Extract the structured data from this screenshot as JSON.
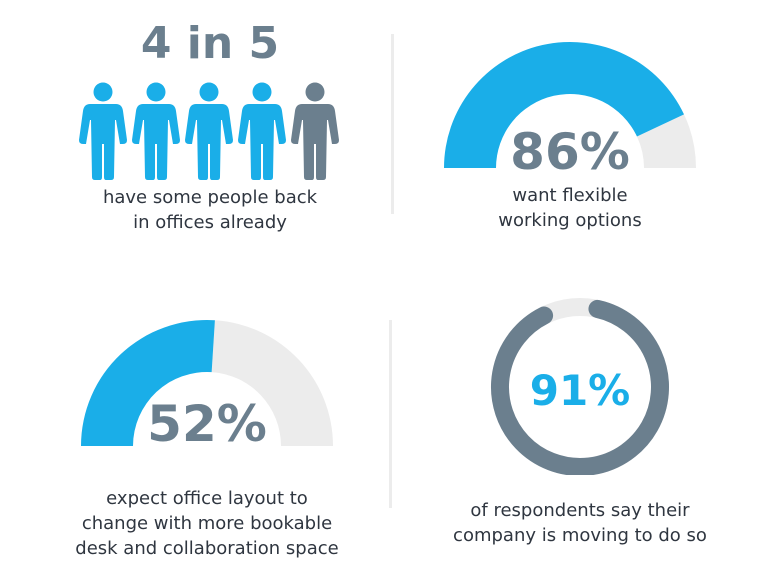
{
  "colors": {
    "blue": "#1aaee8",
    "slate": "#6b7f8e",
    "track": "#ececec",
    "text": "#2f3640"
  },
  "chart_data": [
    {
      "type": "pictograph",
      "title": "4 in 5",
      "value": 4,
      "total": 5,
      "icon": "person-icon",
      "caption_lines": [
        "have some people back",
        "in offices already"
      ]
    },
    {
      "type": "gauge",
      "label": "86%",
      "value": 86,
      "max": 100,
      "caption_lines": [
        "want flexible",
        "working options"
      ]
    },
    {
      "type": "gauge",
      "label": "52%",
      "value": 52,
      "max": 100,
      "caption_lines": [
        "expect office layout to",
        "change with more bookable",
        "desk and collaboration space"
      ]
    },
    {
      "type": "donut",
      "label": "91%",
      "value": 91,
      "max": 100,
      "caption_lines": [
        "of respondents say their",
        "company is moving to do so"
      ]
    }
  ]
}
